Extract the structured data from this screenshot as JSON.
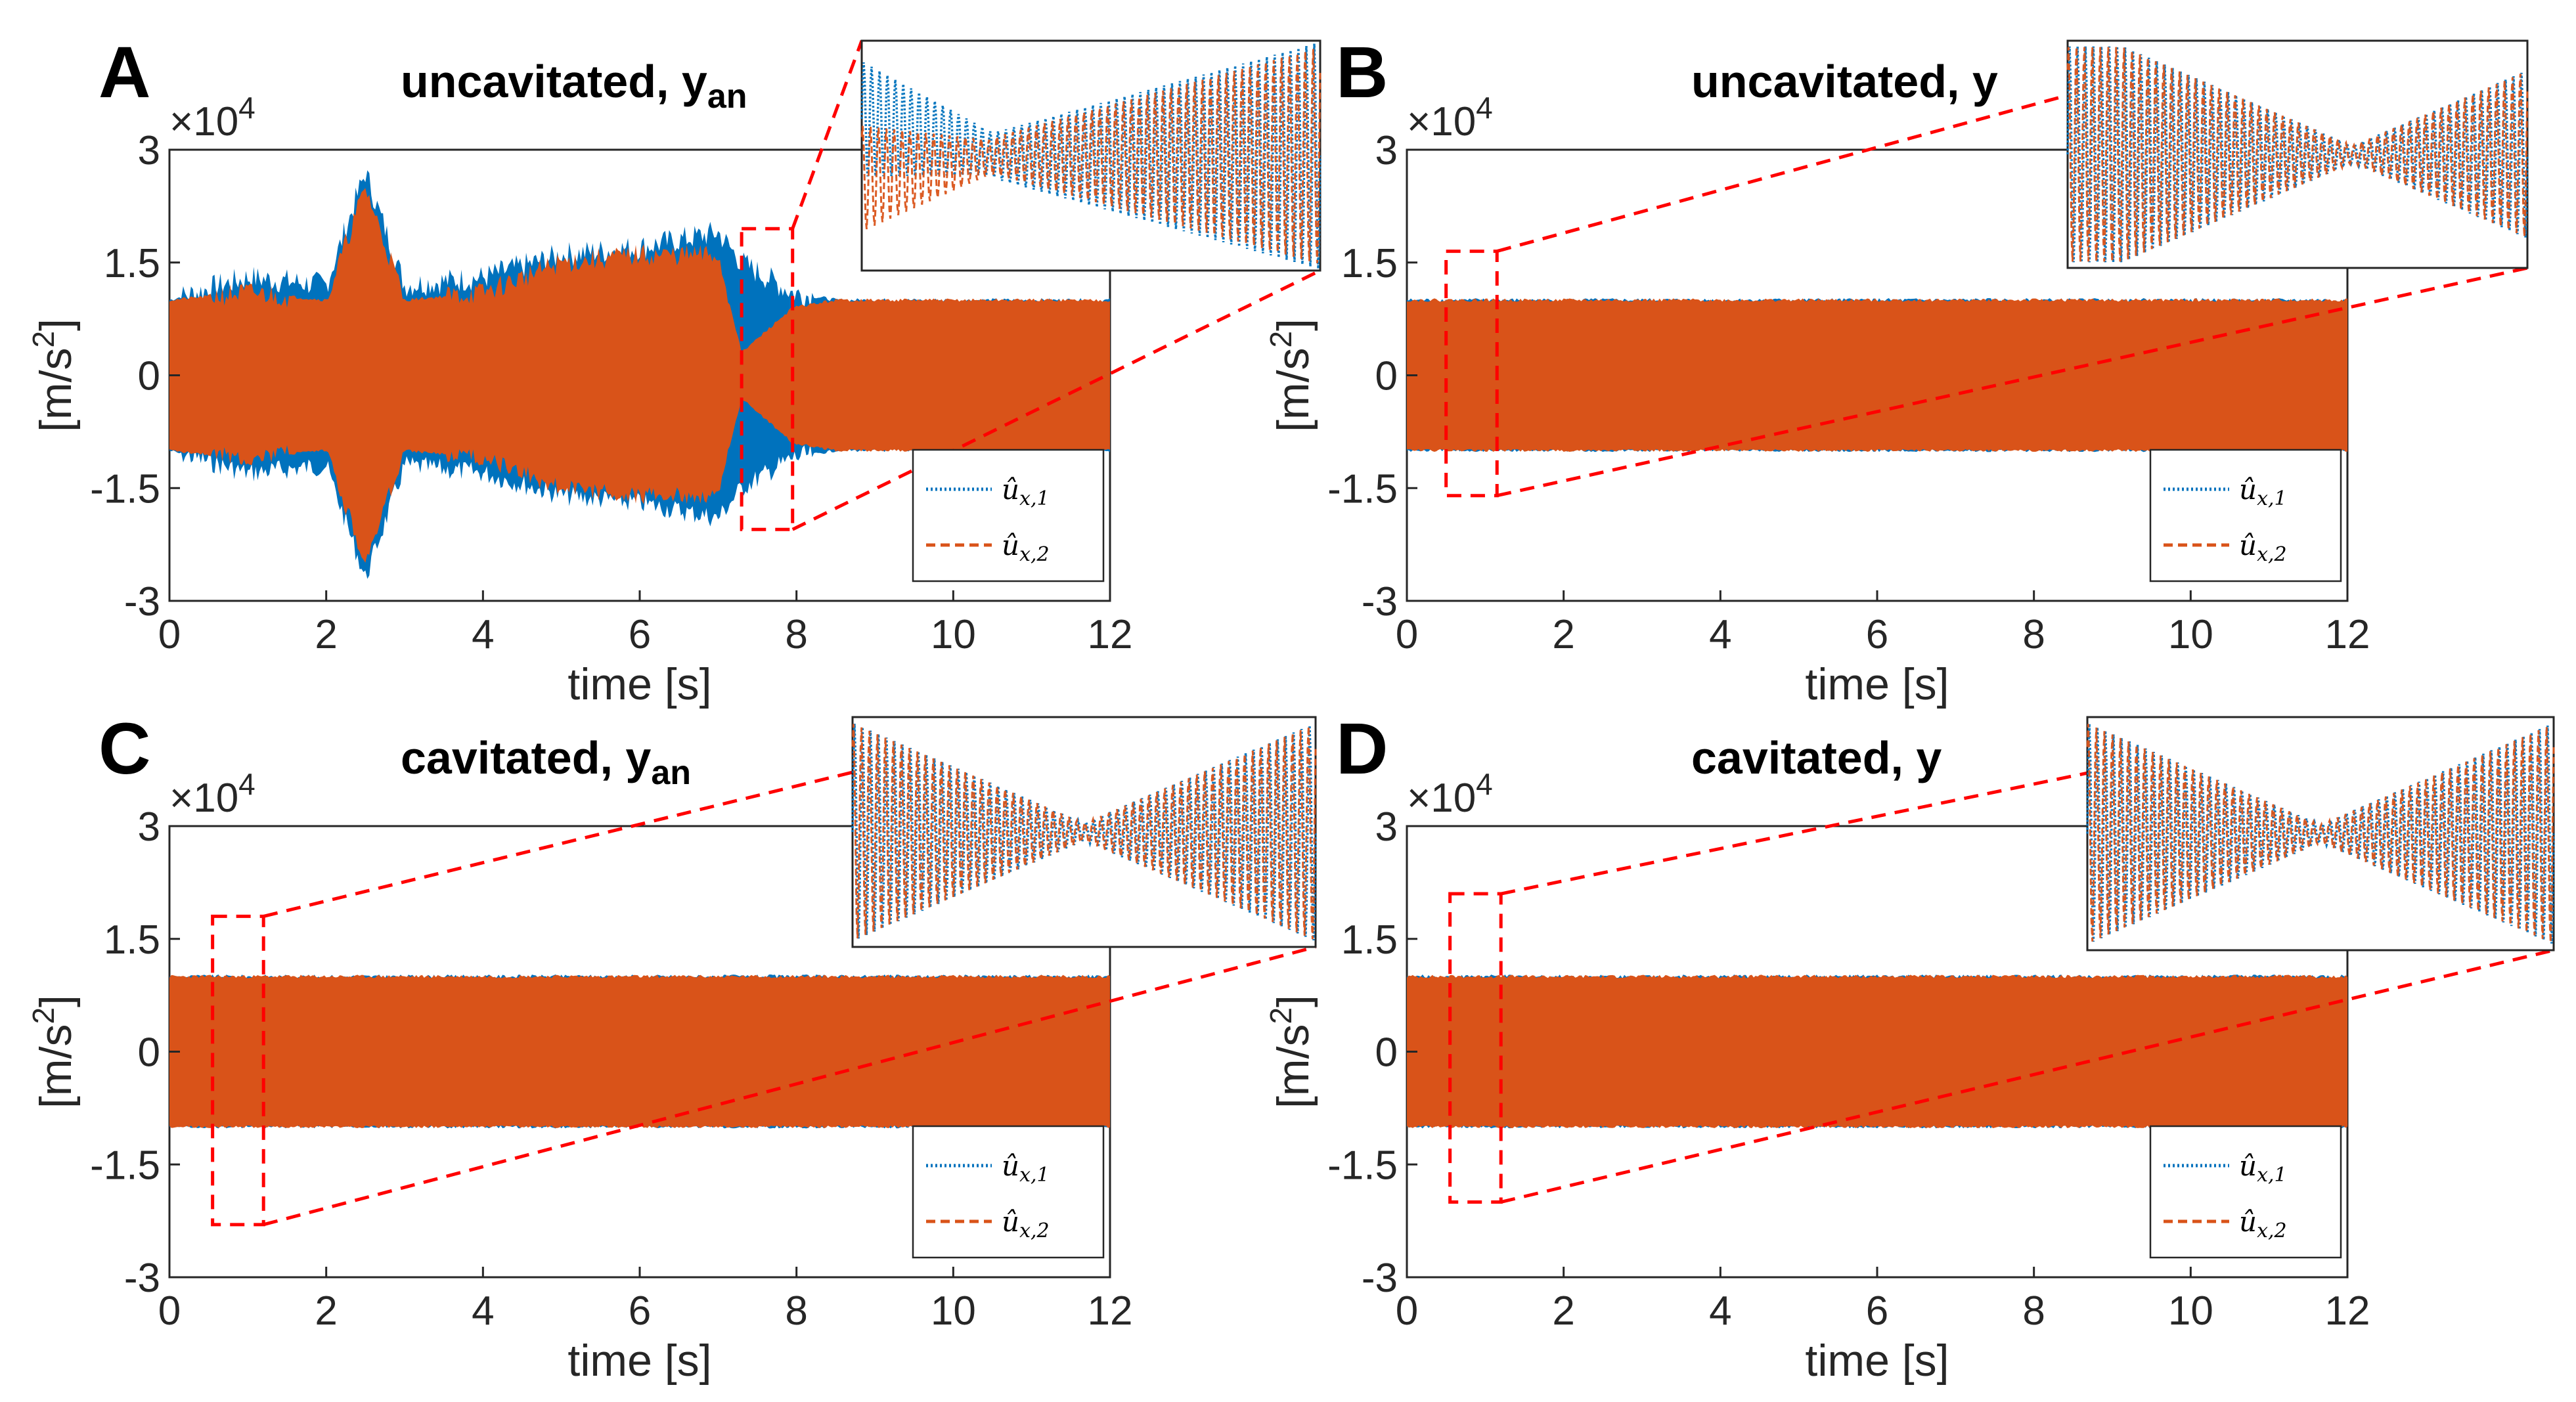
{
  "figure": {
    "legend_entries": [
      "û_{x,1}",
      "û_{x,2}"
    ],
    "colors": {
      "series1": "#0072BD",
      "series2": "#D95319",
      "zoom": "#FF0000",
      "axes": "#262626"
    }
  },
  "chart_data": [
    {
      "panel_label": "A",
      "type": "line",
      "title": "uncavitated, y",
      "title_sub": "an",
      "xlabel": "time [s]",
      "ylabel": "[m/s",
      "ylabel_sup": "2",
      "ylabel_close": "]",
      "y_multiplier": "×10",
      "y_multiplier_exp": "4",
      "xlim": [
        0,
        12
      ],
      "ylim": [
        -3,
        3
      ],
      "x_data_max": 12,
      "xticks": [
        "0",
        "2",
        "4",
        "6",
        "8",
        "10",
        "12"
      ],
      "yticks": [
        "-3",
        "-1.5",
        "0",
        "1.5",
        "3"
      ],
      "zoom_window": {
        "t_start": 7.3,
        "t_end": 7.95,
        "y_low": -2.05,
        "y_high": 1.95
      },
      "inset_style": "beating-offset",
      "legend": [
        "û_{x,1}",
        "û_{x,2}"
      ],
      "series": [
        {
          "name": "û_{x,1}",
          "style": "dotted",
          "envelope": [
            [
              0,
              1.0
            ],
            [
              1,
              1.3
            ],
            [
              2,
              1.2
            ],
            [
              2.5,
              2.7
            ],
            [
              3,
              1.2
            ],
            [
              4,
              1.3
            ],
            [
              5,
              1.6
            ],
            [
              6,
              1.7
            ],
            [
              7,
              1.9
            ],
            [
              7.3,
              1.5
            ],
            [
              7.95,
              1.1
            ],
            [
              8.5,
              1.0
            ],
            [
              12,
              1.0
            ]
          ]
        },
        {
          "name": "û_{x,2}",
          "style": "dashed",
          "envelope": [
            [
              0,
              1.0
            ],
            [
              1,
              1.1
            ],
            [
              2,
              1.0
            ],
            [
              2.5,
              2.5
            ],
            [
              3,
              1.0
            ],
            [
              4,
              1.1
            ],
            [
              5,
              1.5
            ],
            [
              6,
              1.6
            ],
            [
              7,
              1.6
            ],
            [
              7.3,
              0.3
            ],
            [
              7.95,
              0.9
            ],
            [
              8.5,
              1.0
            ],
            [
              12,
              1.0
            ]
          ]
        }
      ]
    },
    {
      "panel_label": "B",
      "type": "line",
      "title": "uncavitated, y",
      "title_sub": "",
      "xlabel": "time [s]",
      "ylabel": "[m/s",
      "ylabel_sup": "2",
      "ylabel_close": "]",
      "y_multiplier": "×10",
      "y_multiplier_exp": "4",
      "xlim": [
        0,
        12
      ],
      "ylim": [
        -3,
        3
      ],
      "x_data_max": 12,
      "xticks": [
        "0",
        "2",
        "4",
        "6",
        "8",
        "10",
        "12"
      ],
      "yticks": [
        "-3",
        "-1.5",
        "0",
        "1.5",
        "3"
      ],
      "zoom_window": {
        "t_start": 0.5,
        "t_end": 1.15,
        "y_low": -1.6,
        "y_high": 1.65
      },
      "inset_style": "beating",
      "legend": [
        "û_{x,1}",
        "û_{x,2}"
      ],
      "series": [
        {
          "name": "û_{x,1}",
          "style": "dotted",
          "envelope": [
            [
              0,
              1.0
            ],
            [
              12,
              1.0
            ]
          ]
        },
        {
          "name": "û_{x,2}",
          "style": "dashed",
          "envelope": [
            [
              0,
              1.0
            ],
            [
              12,
              1.0
            ]
          ]
        }
      ]
    },
    {
      "panel_label": "C",
      "type": "line",
      "title": "cavitated, y",
      "title_sub": "an",
      "xlabel": "time [s]",
      "ylabel": "[m/s",
      "ylabel_sup": "2",
      "ylabel_close": "]",
      "y_multiplier": "×10",
      "y_multiplier_exp": "4",
      "xlim": [
        0,
        12
      ],
      "ylim": [
        -3,
        3
      ],
      "x_data_max": 12,
      "xticks": [
        "0",
        "2",
        "4",
        "6",
        "8",
        "10",
        "12"
      ],
      "yticks": [
        "-3",
        "-1.5",
        "0",
        "1.5",
        "3"
      ],
      "zoom_window": {
        "t_start": 0.55,
        "t_end": 1.2,
        "y_low": -2.3,
        "y_high": 1.8
      },
      "inset_style": "beating",
      "legend": [
        "û_{x,1}",
        "û_{x,2}"
      ],
      "series": [
        {
          "name": "û_{x,1}",
          "style": "dotted",
          "envelope": [
            [
              0,
              1.0
            ],
            [
              12,
              1.0
            ]
          ]
        },
        {
          "name": "û_{x,2}",
          "style": "dashed",
          "envelope": [
            [
              0,
              1.0
            ],
            [
              12,
              1.0
            ]
          ]
        }
      ]
    },
    {
      "panel_label": "D",
      "type": "line",
      "title": "cavitated, y",
      "title_sub": "",
      "xlabel": "time [s]",
      "ylabel": "[m/s",
      "ylabel_sup": "2",
      "ylabel_close": "]",
      "y_multiplier": "×10",
      "y_multiplier_exp": "4",
      "xlim": [
        0,
        12
      ],
      "ylim": [
        -3,
        3
      ],
      "x_data_max": 12,
      "xticks": [
        "0",
        "2",
        "4",
        "6",
        "8",
        "10",
        "12"
      ],
      "yticks": [
        "-3",
        "-1.5",
        "0",
        "1.5",
        "3"
      ],
      "zoom_window": {
        "t_start": 0.55,
        "t_end": 1.2,
        "y_low": -2.0,
        "y_high": 2.1
      },
      "inset_style": "beating",
      "legend": [
        "û_{x,1}",
        "û_{x,2}"
      ],
      "series": [
        {
          "name": "û_{x,1}",
          "style": "dotted",
          "envelope": [
            [
              0,
              1.0
            ],
            [
              12,
              1.0
            ]
          ]
        },
        {
          "name": "û_{x,2}",
          "style": "dashed",
          "envelope": [
            [
              0,
              1.0
            ],
            [
              12,
              1.0
            ]
          ]
        }
      ]
    }
  ]
}
